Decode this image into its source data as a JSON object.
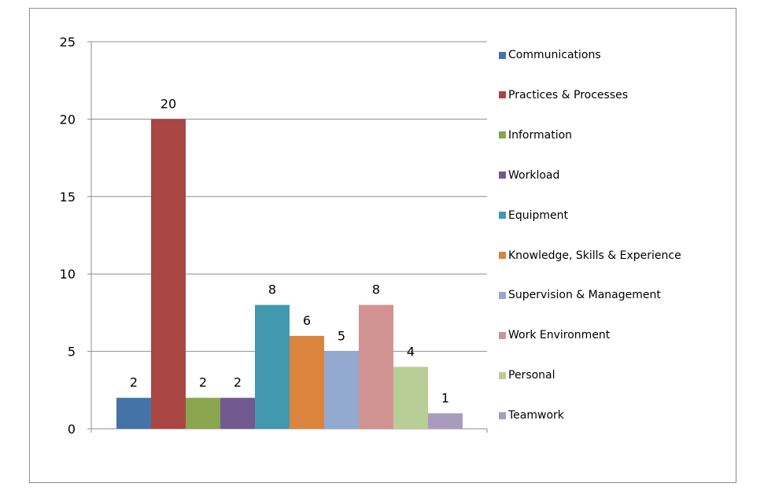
{
  "chart_data": {
    "type": "bar",
    "categories": [
      "Communications",
      "Practices & Processes",
      "Information",
      "Workload",
      "Equipment",
      "Knowledge, Skills & Experience",
      "Supervision & Management",
      "Work Environment",
      "Personal",
      "Teamwork"
    ],
    "values": [
      2,
      20,
      2,
      2,
      8,
      6,
      5,
      8,
      4,
      1
    ],
    "colors": [
      "#4572A7",
      "#AA4643",
      "#89A54E",
      "#71588F",
      "#4198AF",
      "#DB843D",
      "#93A9CF",
      "#D19392",
      "#B9CD96",
      "#A99BBD"
    ],
    "title": "",
    "xlabel": "",
    "ylabel": "",
    "ylim": [
      0,
      25
    ],
    "yticks": [
      "0",
      "5",
      "10",
      "15",
      "20",
      "25"
    ],
    "grid": true,
    "legend_position": "right"
  }
}
